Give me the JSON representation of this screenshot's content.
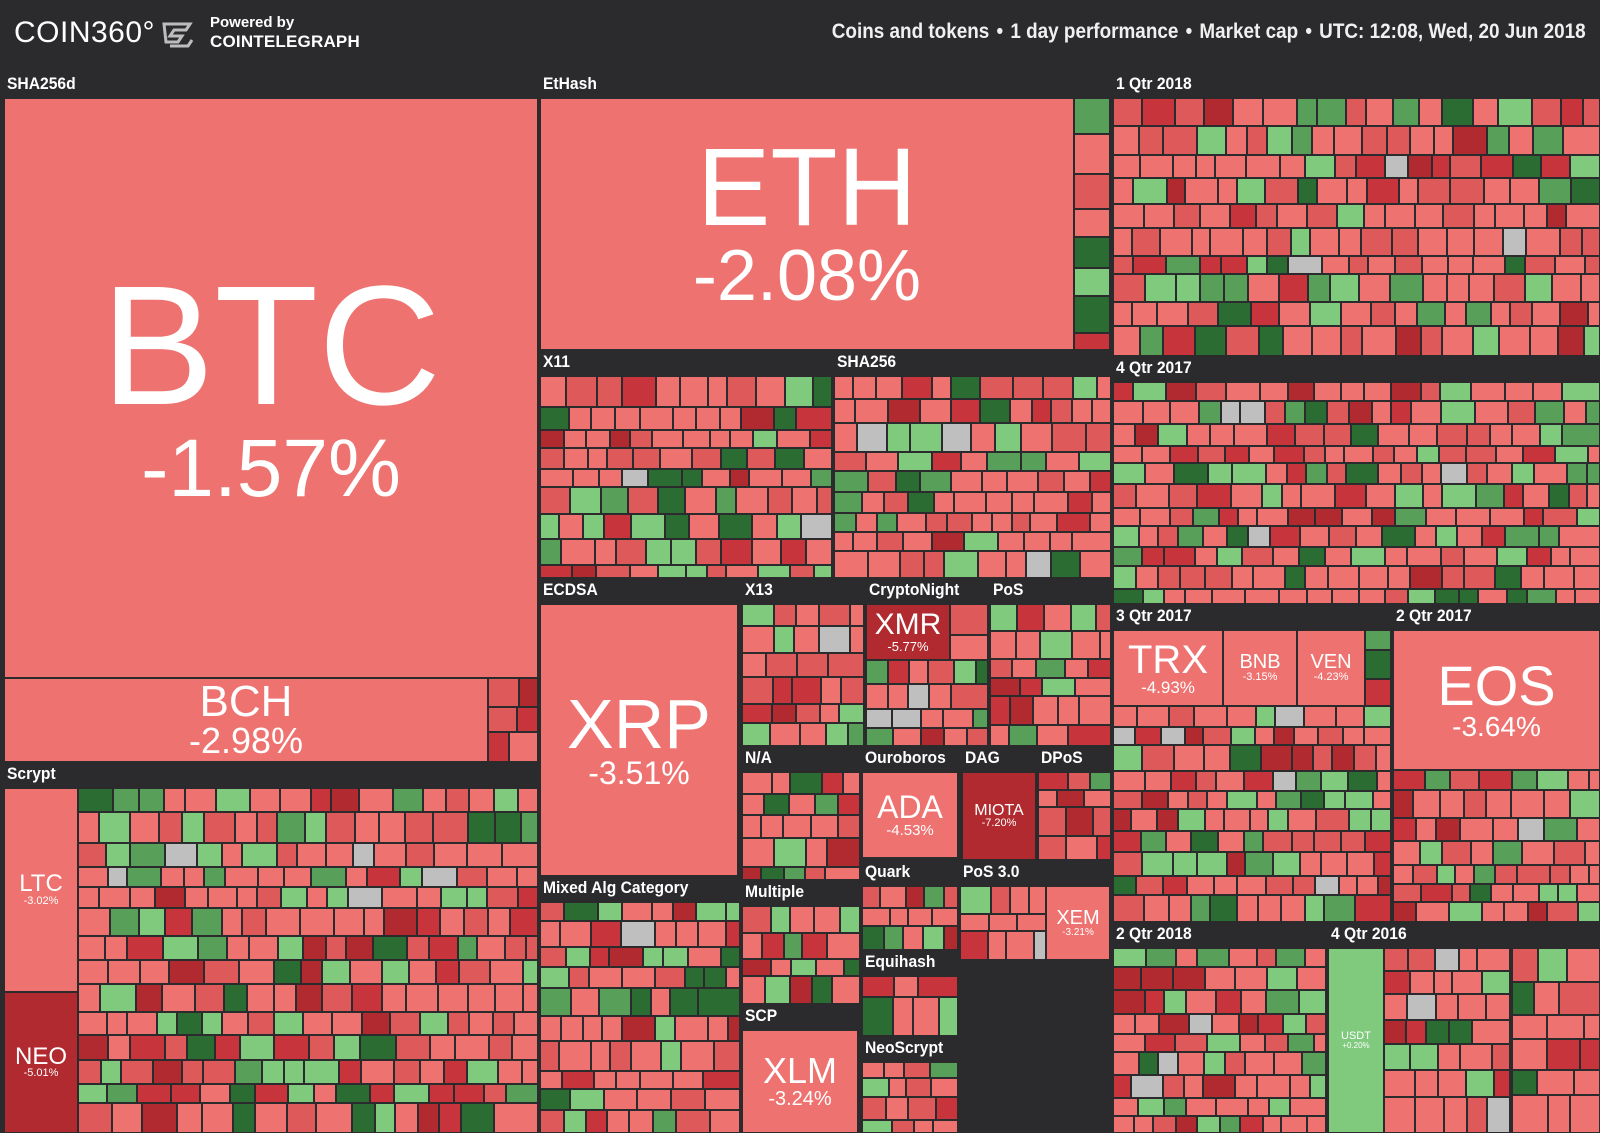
{
  "header": {
    "logo": "COIN360°",
    "powered_by_line1": "Powered by",
    "powered_by_line2": "COINTELEGRAPH",
    "info": {
      "scope": "Coins and tokens",
      "period": "1 day performance",
      "metric": "Market cap",
      "timestamp": "UTC: 12:08, Wed, 20 Jun 2018"
    }
  },
  "colors": {
    "background": "#2b2b2e",
    "neg_light": "#ed7270",
    "neg_mid": "#de5a5a",
    "neg_dark": "#c8343b",
    "neg_darker": "#b12a30",
    "pos_light": "#7fca7c",
    "pos_mid": "#58a05a",
    "pos_dark": "#2b6c32",
    "neutral": "#bfbfbf"
  },
  "groups": [
    {
      "id": "sha256d",
      "label": "SHA256d"
    },
    {
      "id": "ethash",
      "label": "EtHash"
    },
    {
      "id": "q1-2018",
      "label": "1 Qtr 2018"
    },
    {
      "id": "x11",
      "label": "X11"
    },
    {
      "id": "sha256",
      "label": "SHA256"
    },
    {
      "id": "q4-2017",
      "label": "4 Qtr 2017"
    },
    {
      "id": "ecdsa",
      "label": "ECDSA"
    },
    {
      "id": "x13",
      "label": "X13"
    },
    {
      "id": "cryptonight",
      "label": "CryptoNight"
    },
    {
      "id": "pos",
      "label": "PoS"
    },
    {
      "id": "q3-2017",
      "label": "3 Qtr 2017"
    },
    {
      "id": "q2-2017",
      "label": "2 Qtr 2017"
    },
    {
      "id": "scrypt",
      "label": "Scrypt"
    },
    {
      "id": "na",
      "label": "N/A"
    },
    {
      "id": "ouroboros",
      "label": "Ouroboros"
    },
    {
      "id": "dag",
      "label": "DAG"
    },
    {
      "id": "dpos",
      "label": "DPoS"
    },
    {
      "id": "mixed",
      "label": "Mixed Alg Category"
    },
    {
      "id": "multiple",
      "label": "Multiple"
    },
    {
      "id": "quark",
      "label": "Quark"
    },
    {
      "id": "pos3",
      "label": "PoS 3.0"
    },
    {
      "id": "equihash",
      "label": "Equihash"
    },
    {
      "id": "q2-2018",
      "label": "2 Qtr 2018"
    },
    {
      "id": "q4-2016",
      "label": "4 Qtr 2016"
    },
    {
      "id": "scp",
      "label": "SCP"
    },
    {
      "id": "neoscrypt",
      "label": "NeoScrypt"
    }
  ],
  "coins": [
    {
      "id": "btc",
      "symbol": "BTC",
      "change": "-1.57%",
      "change_value": -1.57
    },
    {
      "id": "bch",
      "symbol": "BCH",
      "change": "-2.98%",
      "change_value": -2.98
    },
    {
      "id": "eth",
      "symbol": "ETH",
      "change": "-2.08%",
      "change_value": -2.08
    },
    {
      "id": "xrp",
      "symbol": "XRP",
      "change": "-3.51%",
      "change_value": -3.51
    },
    {
      "id": "xmr",
      "symbol": "XMR",
      "change": "-5.77%",
      "change_value": -5.77
    },
    {
      "id": "trx",
      "symbol": "TRX",
      "change": "-4.93%",
      "change_value": -4.93
    },
    {
      "id": "bnb",
      "symbol": "BNB",
      "change": "-3.15%",
      "change_value": -3.15
    },
    {
      "id": "ven",
      "symbol": "VEN",
      "change": "-4.23%",
      "change_value": -4.23
    },
    {
      "id": "eos",
      "symbol": "EOS",
      "change": "-3.64%",
      "change_value": -3.64
    },
    {
      "id": "ltc",
      "symbol": "LTC",
      "change": "-3.02%",
      "change_value": -3.02
    },
    {
      "id": "neo",
      "symbol": "NEO",
      "change": "-5.01%",
      "change_value": -5.01
    },
    {
      "id": "ada",
      "symbol": "ADA",
      "change": "-4.53%",
      "change_value": -4.53
    },
    {
      "id": "miota",
      "symbol": "MIOTA",
      "change": "-7.20%",
      "change_value": -7.2
    },
    {
      "id": "xem",
      "symbol": "XEM",
      "change": "-3.21%",
      "change_value": -3.21
    },
    {
      "id": "usdt",
      "symbol": "USDT",
      "change": "+0.20%",
      "change_value": 0.2
    },
    {
      "id": "xlm",
      "symbol": "XLM",
      "change": "-3.24%",
      "change_value": -3.24
    }
  ]
}
